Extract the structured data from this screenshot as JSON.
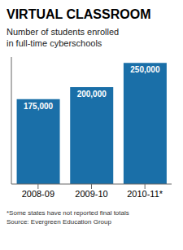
{
  "chart_data": {
    "type": "bar",
    "title": "VIRTUAL CLASSROOM",
    "subtitle": "Number of students enrolled\nin full-time cyberschools",
    "categories": [
      "2008-09",
      "2009-10",
      "2010-11*"
    ],
    "values": [
      175000,
      200000,
      250000
    ],
    "value_labels": [
      "175,000",
      "200,000",
      "250,000"
    ],
    "data_labels": true,
    "color": "#1a6fa8",
    "ylim": [
      0,
      262000
    ],
    "tick_labels": "x",
    "grid": false,
    "annotations": [
      "*Some states have not reported final totals",
      "Source: Evergreen Education Group"
    ]
  }
}
